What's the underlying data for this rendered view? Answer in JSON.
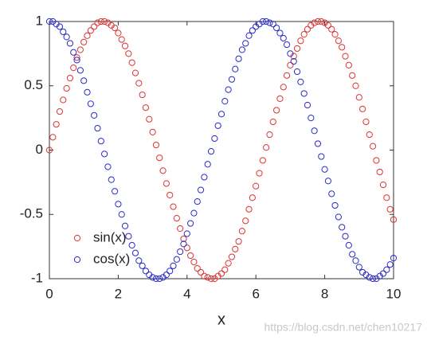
{
  "chart_data": {
    "type": "scatter",
    "xlabel": "x",
    "x": [
      0,
      0.1,
      0.2,
      0.3,
      0.4,
      0.5,
      0.6,
      0.7,
      0.8,
      0.9,
      1,
      1.1,
      1.2,
      1.3,
      1.4,
      1.5,
      1.6,
      1.7,
      1.8,
      1.9,
      2,
      2.1,
      2.2,
      2.3,
      2.4,
      2.5,
      2.6,
      2.7,
      2.8,
      2.9,
      3,
      3.1,
      3.2,
      3.3,
      3.4,
      3.5,
      3.6,
      3.7,
      3.8,
      3.9,
      4,
      4.1,
      4.2,
      4.3,
      4.4,
      4.5,
      4.6,
      4.7,
      4.8,
      4.9,
      5,
      5.1,
      5.2,
      5.3,
      5.4,
      5.5,
      5.6,
      5.7,
      5.8,
      5.9,
      6,
      6.1,
      6.2,
      6.3,
      6.4,
      6.5,
      6.6,
      6.7,
      6.8,
      6.9,
      7,
      7.1,
      7.2,
      7.3,
      7.4,
      7.5,
      7.6,
      7.7,
      7.8,
      7.9,
      8,
      8.1,
      8.2,
      8.3,
      8.4,
      8.5,
      8.6,
      8.7,
      8.8,
      8.9,
      9,
      9.1,
      9.2,
      9.3,
      9.4,
      9.5,
      9.6,
      9.7,
      9.8,
      9.9,
      10
    ],
    "series": [
      {
        "name": "sin(x)",
        "color": "#dd3333",
        "values": [
          0,
          0.1,
          0.2,
          0.3,
          0.39,
          0.48,
          0.56,
          0.64,
          0.72,
          0.78,
          0.84,
          0.89,
          0.93,
          0.96,
          0.99,
          1,
          1,
          0.99,
          0.97,
          0.95,
          0.91,
          0.86,
          0.81,
          0.75,
          0.68,
          0.6,
          0.52,
          0.43,
          0.33,
          0.24,
          0.14,
          0.04,
          -0.06,
          -0.16,
          -0.26,
          -0.35,
          -0.44,
          -0.53,
          -0.61,
          -0.69,
          -0.76,
          -0.82,
          -0.87,
          -0.92,
          -0.95,
          -0.98,
          -0.99,
          -1,
          -1,
          -0.98,
          -0.96,
          -0.93,
          -0.88,
          -0.83,
          -0.77,
          -0.71,
          -0.63,
          -0.55,
          -0.46,
          -0.37,
          -0.28,
          -0.18,
          -0.08,
          0.02,
          0.12,
          0.22,
          0.31,
          0.4,
          0.49,
          0.58,
          0.66,
          0.73,
          0.79,
          0.85,
          0.9,
          0.94,
          0.97,
          0.99,
          1,
          1,
          0.99,
          0.97,
          0.94,
          0.9,
          0.85,
          0.8,
          0.73,
          0.66,
          0.58,
          0.5,
          0.41,
          0.32,
          0.22,
          0.12,
          0.03,
          -0.08,
          -0.17,
          -0.27,
          -0.37,
          -0.46,
          -0.54
        ]
      },
      {
        "name": "cos(x)",
        "color": "#2a2ac8",
        "values": [
          1,
          1,
          0.98,
          0.96,
          0.92,
          0.88,
          0.83,
          0.76,
          0.7,
          0.62,
          0.54,
          0.45,
          0.36,
          0.27,
          0.17,
          0.07,
          -0.03,
          -0.13,
          -0.23,
          -0.32,
          -0.42,
          -0.5,
          -0.59,
          -0.67,
          -0.74,
          -0.8,
          -0.86,
          -0.9,
          -0.94,
          -0.97,
          -0.99,
          -1,
          -1,
          -0.99,
          -0.97,
          -0.94,
          -0.9,
          -0.85,
          -0.79,
          -0.73,
          -0.65,
          -0.57,
          -0.49,
          -0.4,
          -0.31,
          -0.21,
          -0.11,
          -0.01,
          0.09,
          0.19,
          0.28,
          0.38,
          0.47,
          0.55,
          0.63,
          0.71,
          0.78,
          0.83,
          0.89,
          0.93,
          0.96,
          0.98,
          1,
          1,
          0.99,
          0.98,
          0.95,
          0.91,
          0.87,
          0.82,
          0.75,
          0.69,
          0.61,
          0.53,
          0.44,
          0.35,
          0.25,
          0.15,
          0.05,
          -0.05,
          -0.15,
          -0.24,
          -0.34,
          -0.43,
          -0.52,
          -0.6,
          -0.67,
          -0.74,
          -0.81,
          -0.86,
          -0.91,
          -0.95,
          -0.97,
          -0.99,
          -1,
          -1,
          -0.98,
          -0.96,
          -0.93,
          -0.89,
          -0.84
        ]
      }
    ],
    "xlim": [
      0,
      10
    ],
    "xticks": [
      0,
      2,
      4,
      6,
      8,
      10
    ],
    "ylim": [
      -1,
      1
    ],
    "yticks": [
      -1,
      -0.5,
      0,
      0.5,
      1
    ],
    "grid": false,
    "legend": "lower left",
    "marker": "open-circle",
    "watermark": "https://blog.csdn.net/chen10217"
  }
}
